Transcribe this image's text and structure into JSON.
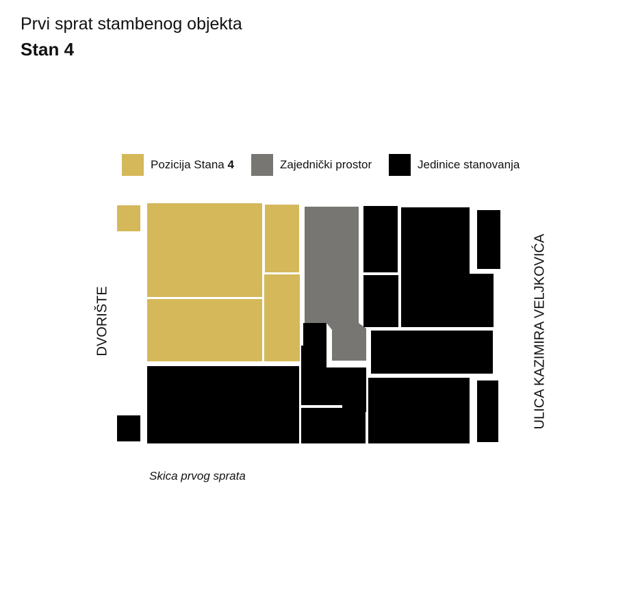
{
  "header": {
    "title": "Prvi sprat stambenog objekta",
    "subtitle": "Stan 4"
  },
  "legend": [
    {
      "label": "Pozicija Stana ",
      "label_bold": "4",
      "color": "#d4b85a"
    },
    {
      "label": "Zajednički prostor",
      "label_bold": "",
      "color": "#777672"
    },
    {
      "label": "Jedinice stanovanja",
      "label_bold": "",
      "color": "#000000"
    }
  ],
  "labels": {
    "left": "DVORIŠTE",
    "right": "ULICA KAZIMIRA VELJKOVIĆA",
    "caption": "Skica prvog sprata"
  },
  "colors": {
    "apartment": "#d4b85a",
    "common": "#777672",
    "units": "#000000"
  }
}
